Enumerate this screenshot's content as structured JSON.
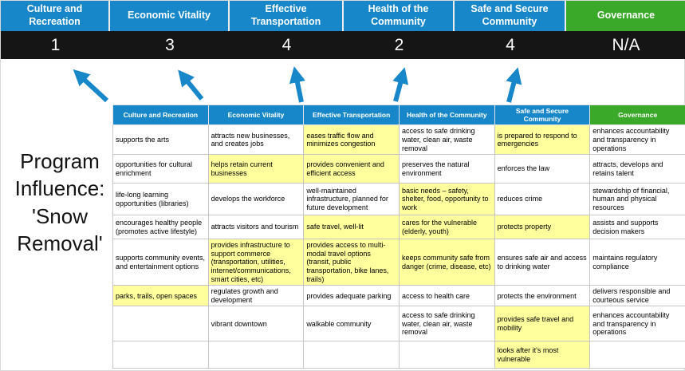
{
  "title": "Program\nInfluence:\n'Snow\nRemoval'",
  "colors": {
    "blue": "#1787c9",
    "green": "#3aa829",
    "dark": "#151515",
    "hl": "#ffff9e"
  },
  "scoreboard": {
    "columns": [
      {
        "label": "Culture and Recreation",
        "score": "1",
        "color": "#1787c9"
      },
      {
        "label": "Economic Vitality",
        "score": "3",
        "color": "#1787c9"
      },
      {
        "label": "Effective Transportation",
        "score": "4",
        "color": "#1787c9"
      },
      {
        "label": "Health of the Community",
        "score": "2",
        "color": "#1787c9"
      },
      {
        "label": "Safe and Secure Community",
        "score": "4",
        "color": "#1787c9"
      },
      {
        "label": "Governance",
        "score": "N/A",
        "color": "#3aa829"
      }
    ]
  },
  "matrix": {
    "headers": [
      {
        "label": "Culture and Recreation",
        "color": "#1787c9"
      },
      {
        "label": "Economic Vitality",
        "color": "#1787c9"
      },
      {
        "label": "Effective Transportation",
        "color": "#1787c9"
      },
      {
        "label": "Health of the Community",
        "color": "#1787c9"
      },
      {
        "label": "Safe and Secure Community",
        "color": "#1787c9"
      },
      {
        "label": "Governance",
        "color": "#3aa829"
      }
    ],
    "rows": [
      [
        {
          "t": "supports the arts",
          "hl": false
        },
        {
          "t": "attracts new businesses, and creates jobs",
          "hl": false
        },
        {
          "t": "eases traffic flow and minimizes congestion",
          "hl": true
        },
        {
          "t": "access to safe drinking water, clean air, waste removal",
          "hl": false
        },
        {
          "t": "is prepared to respond to emergencies",
          "hl": true
        },
        {
          "t": "enhances accountability and transparency in operations",
          "hl": false
        }
      ],
      [
        {
          "t": "opportunities for cultural enrichment",
          "hl": false
        },
        {
          "t": "helps retain current businesses",
          "hl": true
        },
        {
          "t": "provides convenient and efficient access",
          "hl": true
        },
        {
          "t": "preserves the natural environment",
          "hl": false
        },
        {
          "t": "enforces the law",
          "hl": false
        },
        {
          "t": "attracts, develops and retains talent",
          "hl": false
        }
      ],
      [
        {
          "t": "life-long learning opportunities (libraries)",
          "hl": false
        },
        {
          "t": "develops the workforce",
          "hl": false
        },
        {
          "t": "well-maintained infrastructure, planned for future development",
          "hl": false
        },
        {
          "t": "basic needs – safety, shelter, food, opportunity to work",
          "hl": true
        },
        {
          "t": "reduces crime",
          "hl": false
        },
        {
          "t": "stewardship of financial, human and physical resources",
          "hl": false
        }
      ],
      [
        {
          "t": "encourages healthy people (promotes active lifestyle)",
          "hl": false
        },
        {
          "t": "attracts visitors and tourism",
          "hl": false
        },
        {
          "t": "safe travel, well-lit",
          "hl": true
        },
        {
          "t": "cares for the vulnerable (elderly, youth)",
          "hl": true
        },
        {
          "t": "protects property",
          "hl": true
        },
        {
          "t": "assists and supports decision makers",
          "hl": false
        }
      ],
      [
        {
          "t": "supports community events, and entertainment options",
          "hl": false
        },
        {
          "t": "provides infrastructure to support commerce (transportation, utilities, internet/communications, smart cities, etc)",
          "hl": true
        },
        {
          "t": "provides access to multi-modal travel options (transit, public transportation, bike lanes, trails)",
          "hl": true
        },
        {
          "t": "keeps community safe from danger (crime, disease, etc)",
          "hl": true
        },
        {
          "t": "ensures safe air and access to drinking water",
          "hl": false
        },
        {
          "t": "maintains regulatory compliance",
          "hl": false
        }
      ],
      [
        {
          "t": "parks, trails, open spaces",
          "hl": true
        },
        {
          "t": "regulates growth and development",
          "hl": false
        },
        {
          "t": "provides adequate parking",
          "hl": false
        },
        {
          "t": "access to health care",
          "hl": false
        },
        {
          "t": "protects the environment",
          "hl": false
        },
        {
          "t": "delivers responsible and courteous service",
          "hl": false
        }
      ],
      [
        {
          "t": "",
          "hl": false
        },
        {
          "t": "vibrant downtown",
          "hl": false
        },
        {
          "t": "walkable community",
          "hl": false
        },
        {
          "t": "access to safe drinking water, clean air, waste removal",
          "hl": false
        },
        {
          "t": "provides safe travel and mobility",
          "hl": true
        },
        {
          "t": "enhances accountability and transparency in operations",
          "hl": false
        }
      ],
      [
        {
          "t": "",
          "hl": false
        },
        {
          "t": "",
          "hl": false
        },
        {
          "t": "",
          "hl": false
        },
        {
          "t": "",
          "hl": false
        },
        {
          "t": "looks after it's most vulnerable",
          "hl": true
        },
        {
          "t": "",
          "hl": false
        }
      ]
    ]
  }
}
